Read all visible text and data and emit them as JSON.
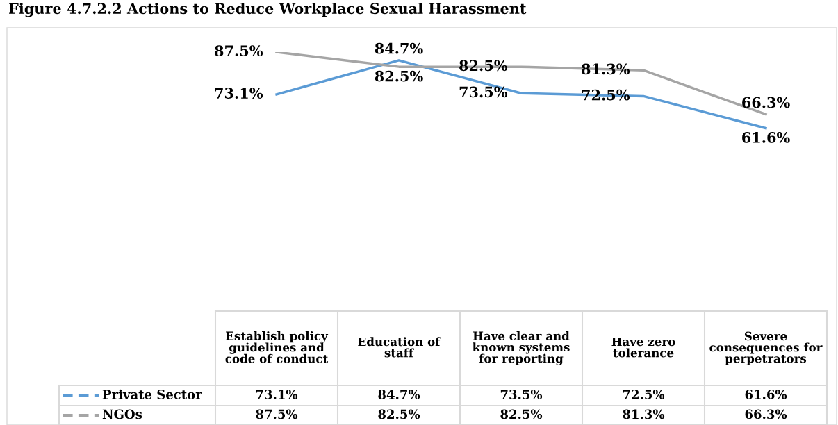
{
  "chart_data": {
    "type": "line",
    "title": "Figure 4.7.2.2 Actions to Reduce Workplace Sexual Harassment",
    "categories": [
      "Establish policy guidelines and code of conduct",
      "Education of staff",
      "Have clear and known systems for reporting",
      "Have zero tolerance",
      "Severe consequences for perpetrators"
    ],
    "relative": false,
    "series": [
      {
        "name": "Private Sector",
        "color": "#5b9bd5",
        "values": [
          73.1,
          84.7,
          73.5,
          72.5,
          61.6
        ],
        "value_labels": [
          "73.1%",
          "84.7%",
          "73.5%",
          "72.5%",
          "61.6%"
        ]
      },
      {
        "name": "NGOs",
        "color": "#a5a5a5",
        "values": [
          87.5,
          82.5,
          82.5,
          81.3,
          66.3
        ],
        "value_labels": [
          "87.5%",
          "82.5%",
          "82.5%",
          "81.3%",
          "66.3%"
        ]
      }
    ],
    "legend": "bottom",
    "marker": "none",
    "line_style": "solid",
    "tick_labels": false
  }
}
